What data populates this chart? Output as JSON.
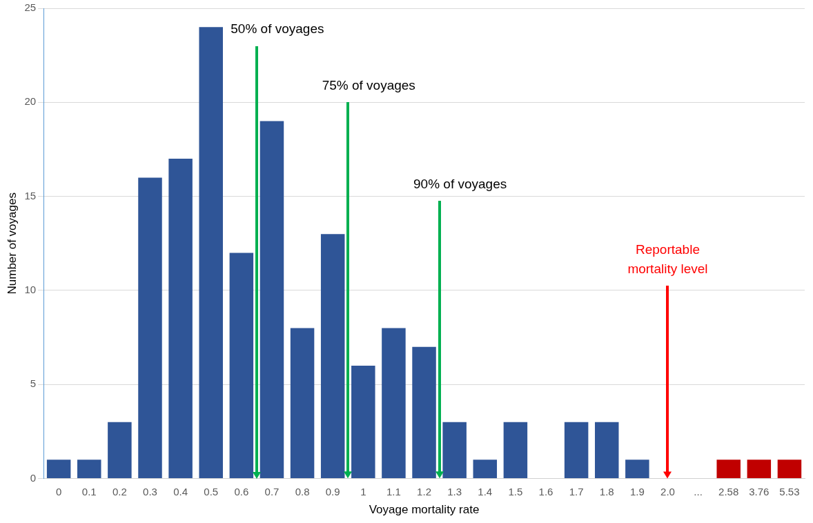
{
  "chart_data": {
    "type": "bar",
    "xlabel": "Voyage mortality rate",
    "ylabel": "Number of voyages",
    "categories": [
      "0",
      "0.1",
      "0.2",
      "0.3",
      "0.4",
      "0.5",
      "0.6",
      "0.7",
      "0.8",
      "0.9",
      "1",
      "1.1",
      "1.2",
      "1.3",
      "1.4",
      "1.5",
      "1.6",
      "1.7",
      "1.8",
      "1.9",
      "2.0",
      "...",
      "2.58",
      "3.76",
      "5.53"
    ],
    "values": [
      1,
      1,
      3,
      16,
      17,
      24,
      12,
      19,
      8,
      13,
      6,
      8,
      7,
      3,
      1,
      3,
      0,
      3,
      3,
      1,
      0,
      0,
      1,
      1,
      1
    ],
    "colors": [
      "#2f5597",
      "#2f5597",
      "#2f5597",
      "#2f5597",
      "#2f5597",
      "#2f5597",
      "#2f5597",
      "#2f5597",
      "#2f5597",
      "#2f5597",
      "#2f5597",
      "#2f5597",
      "#2f5597",
      "#2f5597",
      "#2f5597",
      "#2f5597",
      "#2f5597",
      "#2f5597",
      "#2f5597",
      "#2f5597",
      "#2f5597",
      "#2f5597",
      "#c00000",
      "#c00000",
      "#c00000"
    ],
    "ylim": [
      0,
      25
    ],
    "yticks": [
      0,
      5,
      10,
      15,
      20,
      25
    ],
    "grid": "y",
    "legend": false,
    "annotations": [
      "50% of voyages",
      "75% of voyages",
      "90% of voyages",
      "Reportable mortality level"
    ]
  }
}
